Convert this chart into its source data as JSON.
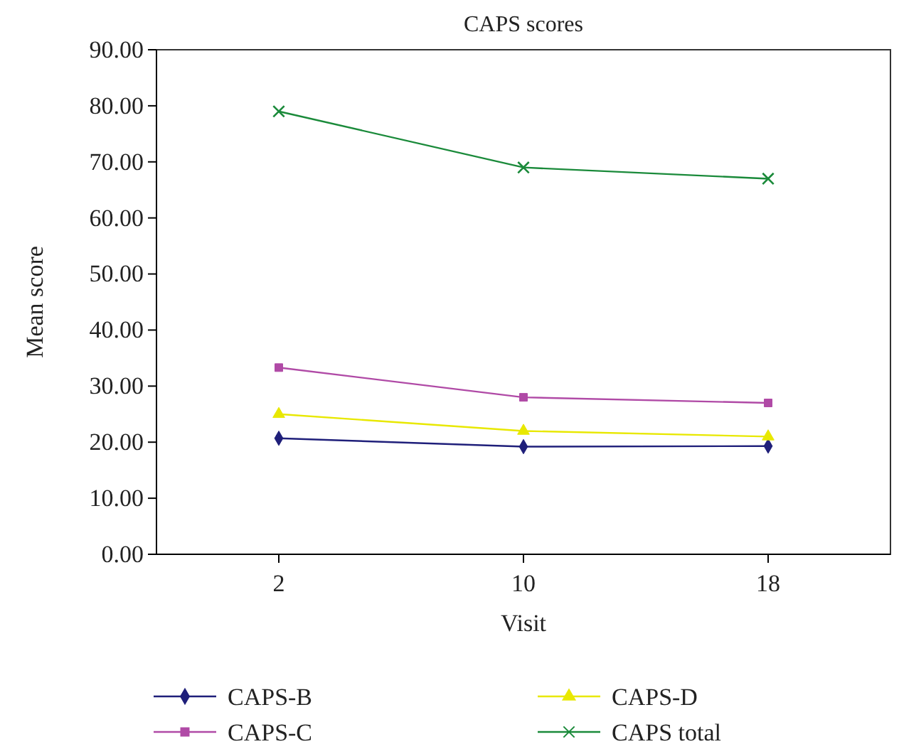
{
  "chart_data": {
    "type": "line",
    "title": "CAPS scores",
    "xlabel": "Visit",
    "ylabel": "Mean score",
    "categories": [
      "2",
      "10",
      "18"
    ],
    "ylim": [
      0,
      90
    ],
    "yticks": [
      {
        "value": 0,
        "label": "0.00"
      },
      {
        "value": 10,
        "label": "10.00"
      },
      {
        "value": 20,
        "label": "20.00"
      },
      {
        "value": 30,
        "label": "30.00"
      },
      {
        "value": 40,
        "label": "40.00"
      },
      {
        "value": 50,
        "label": "50.00"
      },
      {
        "value": 60,
        "label": "60.00"
      },
      {
        "value": 70,
        "label": "70.00"
      },
      {
        "value": 80,
        "label": "80.00"
      },
      {
        "value": 90,
        "label": "90.00"
      }
    ],
    "grid": false,
    "legend": "bottom",
    "line_style": "solid",
    "series": [
      {
        "name": "CAPS-B",
        "color": "#1f1f7a",
        "marker": "diamond",
        "values": [
          20.7,
          19.2,
          19.3
        ]
      },
      {
        "name": "CAPS-C",
        "color": "#b04aa6",
        "marker": "square",
        "values": [
          33.3,
          28.0,
          27.0
        ]
      },
      {
        "name": "CAPS-D",
        "color": "#e8e800",
        "marker": "triangle",
        "values": [
          25.0,
          22.0,
          21.0
        ]
      },
      {
        "name": "CAPS total",
        "color": "#1a8a3a",
        "marker": "cross",
        "values": [
          79.0,
          69.0,
          67.0
        ]
      }
    ]
  }
}
